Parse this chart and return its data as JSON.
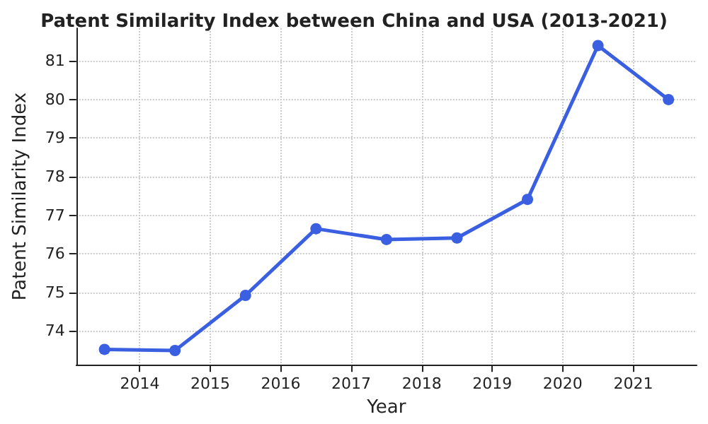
{
  "chart_data": {
    "type": "line",
    "title": "Patent Similarity Index between China and USA (2013-2021)",
    "xlabel": "Year",
    "ylabel": "Patent Similarity Index",
    "x": [
      2013.5,
      2014.5,
      2015.5,
      2016.5,
      2017.5,
      2018.5,
      2019.5,
      2020.5,
      2021.5
    ],
    "series": [
      {
        "color": "#3a5fe0",
        "values": [
          73.52,
          73.49,
          74.92,
          76.65,
          76.37,
          76.41,
          77.41,
          81.4,
          80.0
        ]
      }
    ],
    "xlim": [
      2013.1,
      2021.9
    ],
    "xticks": [
      2014,
      2015,
      2016,
      2017,
      2018,
      2019,
      2020,
      2021
    ],
    "ylim": [
      73.12,
      81.85
    ],
    "yticks": [
      74,
      75,
      76,
      77,
      78,
      79,
      80,
      81
    ],
    "grid": true,
    "marker": "circle",
    "line_style": "solid"
  }
}
